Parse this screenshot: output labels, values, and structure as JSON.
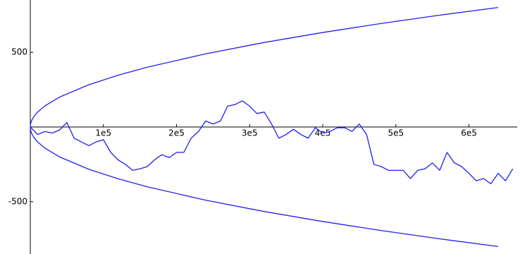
{
  "chart_data": {
    "type": "line",
    "xlim": [
      0,
      666000
    ],
    "ylim": [
      -850,
      850
    ],
    "xticks": [
      {
        "value": 100000,
        "label": "1e5"
      },
      {
        "value": 200000,
        "label": "2e5"
      },
      {
        "value": 300000,
        "label": "3e5"
      },
      {
        "value": 400000,
        "label": "4e5"
      },
      {
        "value": 500000,
        "label": "5e5"
      },
      {
        "value": 600000,
        "label": "6e5"
      }
    ],
    "yticks": [
      -500,
      500
    ],
    "series": [
      {
        "color": "#2020e8",
        "x": [
          0,
          10000,
          20000,
          30000,
          40000,
          50000,
          60000,
          70000,
          80000,
          90000,
          100000,
          110000,
          120000,
          130000,
          140000,
          150000,
          160000,
          170000,
          180000,
          190000,
          200000,
          210000,
          220000,
          230000,
          240000,
          250000,
          260000,
          270000,
          280000,
          290000,
          300000,
          310000,
          320000,
          330000,
          340000,
          350000,
          360000,
          370000,
          380000,
          390000,
          400000,
          410000,
          420000,
          430000,
          440000,
          450000,
          460000,
          470000,
          480000,
          490000,
          500000,
          510000,
          520000,
          530000,
          540000,
          550000,
          560000,
          570000,
          580000,
          590000,
          600000,
          610000,
          620000,
          630000,
          640000,
          650000,
          660000
        ],
        "values": [
          0,
          -50,
          -30,
          -40,
          -20,
          30,
          -75,
          -100,
          -125,
          -100,
          -85,
          -170,
          -220,
          -250,
          -290,
          -280,
          -265,
          -220,
          -185,
          -205,
          -170,
          -170,
          -75,
          -30,
          40,
          20,
          40,
          140,
          150,
          175,
          140,
          90,
          100,
          20,
          -75,
          -50,
          -15,
          -50,
          -75,
          -5,
          -40,
          -30,
          -5,
          -5,
          -30,
          20,
          -50,
          -250,
          -265,
          -290,
          -290,
          -290,
          -345,
          -290,
          -280,
          -240,
          -290,
          -170,
          -240,
          -265,
          -310,
          -360,
          -345,
          -380,
          -310,
          -360,
          -280
        ]
      },
      {
        "color": "#2020e8",
        "x": [
          0,
          500,
          1000,
          2500,
          5000,
          10000,
          20000,
          40000,
          80000,
          120000,
          160000,
          240000,
          320000,
          400000,
          480000,
          560000,
          640000
        ],
        "values": [
          0,
          22.4,
          31.6,
          50,
          70.7,
          100,
          141.4,
          200,
          282.8,
          346.4,
          400,
          489.9,
          565.7,
          632.5,
          692.8,
          748.3,
          800
        ]
      },
      {
        "color": "#2020e8",
        "x": [
          0,
          500,
          1000,
          2500,
          5000,
          10000,
          20000,
          40000,
          80000,
          120000,
          160000,
          240000,
          320000,
          400000,
          480000,
          560000,
          640000
        ],
        "values": [
          0,
          -22.4,
          -31.6,
          -50,
          -70.7,
          -100,
          -141.4,
          -200,
          -282.8,
          -346.4,
          -400,
          -489.9,
          -565.7,
          -632.5,
          -692.8,
          -748.3,
          -800
        ]
      }
    ]
  }
}
